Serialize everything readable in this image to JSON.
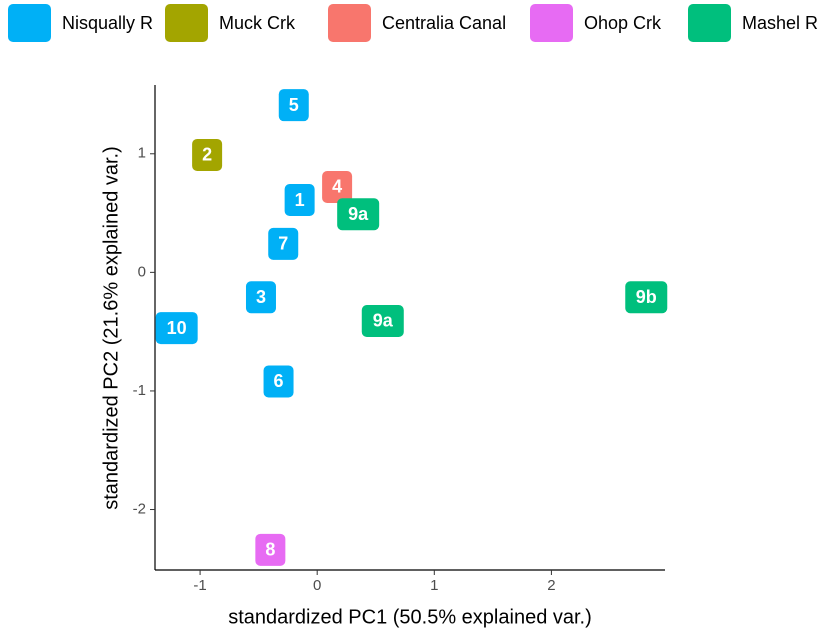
{
  "chart_data": {
    "type": "scatter",
    "x_label": "standardized PC1 (50.5% explained var.)",
    "y_label": "standardized PC2 (21.6% explained var.)",
    "xlim": [
      -1.385,
      2.97
    ],
    "ylim": [
      -2.51,
      1.58
    ],
    "xticks": [
      -1,
      0,
      1,
      2
    ],
    "yticks": [
      -2,
      -1,
      0,
      1
    ],
    "legend_position": "top",
    "series": [
      {
        "name": "Nisqually R",
        "color": "#00B0F6",
        "labels": [
          "5",
          "1",
          "7",
          "3",
          "10",
          "6"
        ],
        "x": [
          -0.2,
          -0.15,
          -0.29,
          -0.48,
          -1.2,
          -0.33
        ],
        "y": [
          1.41,
          0.61,
          0.24,
          -0.21,
          -0.47,
          -0.92
        ]
      },
      {
        "name": "Muck Crk",
        "color": "#A3A500",
        "labels": [
          "2"
        ],
        "x": [
          -0.94
        ],
        "y": [
          0.99
        ]
      },
      {
        "name": "Centralia Canal",
        "color": "#F8766D",
        "labels": [
          "4"
        ],
        "x": [
          0.17
        ],
        "y": [
          0.72
        ]
      },
      {
        "name": "Ohop Crk",
        "color": "#E76BF3",
        "labels": [
          "8"
        ],
        "x": [
          -0.4
        ],
        "y": [
          -2.34
        ]
      },
      {
        "name": "Mashel R",
        "color": "#00BF7D",
        "labels": [
          "9a",
          "9a",
          "9b"
        ],
        "x": [
          0.35,
          0.56,
          2.81
        ],
        "y": [
          0.49,
          -0.41,
          -0.21
        ]
      }
    ]
  }
}
